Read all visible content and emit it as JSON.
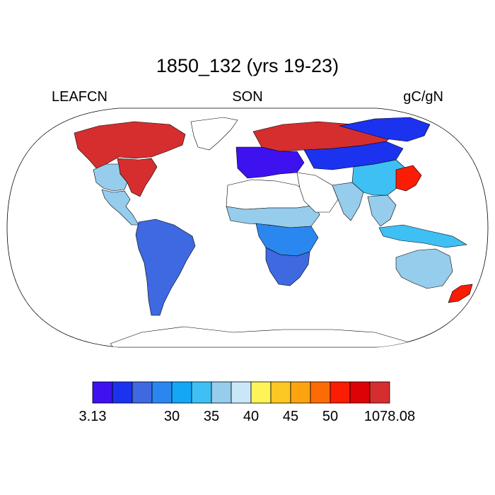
{
  "title": "1850_132 (yrs 19-23)",
  "left_label": "LEAFCN",
  "center_label": "SON",
  "right_label": "gC/gN",
  "colorbar": {
    "colors": [
      "#3d12ef",
      "#1b32ef",
      "#3e69e0",
      "#2b87f0",
      "#14a7f5",
      "#3ec0f4",
      "#96ccec",
      "#cae7f8",
      "#fff35a",
      "#fdc823",
      "#fca40f",
      "#fd6b06",
      "#fb1c04",
      "#dd0205",
      "#d62e2e"
    ],
    "tick_labels": [
      {
        "boundary": 0,
        "text": "3.13"
      },
      {
        "boundary": 2,
        "text": ""
      },
      {
        "boundary": 4,
        "text": "30"
      },
      {
        "boundary": 6,
        "text": "35"
      },
      {
        "boundary": 8,
        "text": "40"
      },
      {
        "boundary": 10,
        "text": "45"
      },
      {
        "boundary": 12,
        "text": "50"
      },
      {
        "boundary": 15,
        "text": "1078.08"
      }
    ]
  },
  "map": {
    "projection": "Robinson",
    "background": "#ffffff",
    "ocean_color": "#ffffff",
    "regions": [
      {
        "name": "Canada boreal",
        "color": "#d62e2e"
      },
      {
        "name": "Eastern USA",
        "color": "#d62e2e"
      },
      {
        "name": "Western USA",
        "color": "#96ccec"
      },
      {
        "name": "Mexico/Central America",
        "color": "#96ccec"
      },
      {
        "name": "Greenland",
        "color": "#ffffff"
      },
      {
        "name": "South America",
        "color": "#3e69e0"
      },
      {
        "name": "Sahara",
        "color": "#ffffff"
      },
      {
        "name": "Sahel",
        "color": "#96ccec"
      },
      {
        "name": "Central Africa",
        "color": "#2b87f0"
      },
      {
        "name": "Southern Africa",
        "color": "#3e69e0"
      },
      {
        "name": "Scandinavia/Russia",
        "color": "#d62e2e"
      },
      {
        "name": "Siberia",
        "color": "#1b32ef"
      },
      {
        "name": "Europe",
        "color": "#3d12ef"
      },
      {
        "name": "Middle East/Arabia",
        "color": "#ffffff"
      },
      {
        "name": "Central Asia",
        "color": "#1b32ef"
      },
      {
        "name": "India",
        "color": "#96ccec"
      },
      {
        "name": "China",
        "color": "#3ec0f4"
      },
      {
        "name": "East China",
        "color": "#fb1c04"
      },
      {
        "name": "SE Asia",
        "color": "#96ccec"
      },
      {
        "name": "Indonesia",
        "color": "#3ec0f4"
      },
      {
        "name": "Australia",
        "color": "#96ccec"
      },
      {
        "name": "New Zealand",
        "color": "#fb1c04"
      },
      {
        "name": "Antarctica",
        "color": "#ffffff"
      }
    ]
  }
}
